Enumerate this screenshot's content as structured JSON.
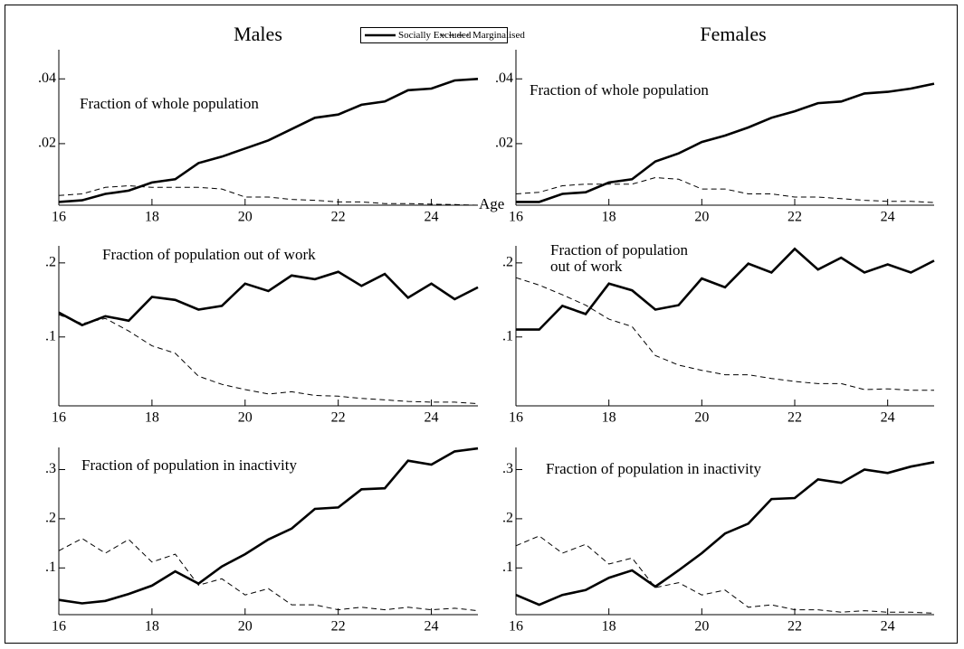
{
  "chart_data": [
    {
      "type": "line",
      "title": "Males",
      "annotation": [
        "Fraction of whole population"
      ],
      "xlabel": "Age",
      "x": [
        16,
        16.5,
        17,
        17.5,
        18,
        18.5,
        19,
        19.5,
        20,
        20.5,
        21,
        21.5,
        22,
        22.5,
        23,
        23.5,
        24,
        24.5,
        25
      ],
      "xlim": [
        16,
        25
      ],
      "xticks": [
        16,
        18,
        20,
        22,
        24
      ],
      "ylim": [
        0.001,
        0.049
      ],
      "yticks": [
        {
          "value": 0.02,
          "label": ".02"
        },
        {
          "value": 0.04,
          "label": ".04"
        }
      ],
      "series": [
        {
          "name": "Socially Excluded",
          "color": "#000000",
          "style": "solid",
          "values": [
            0.002,
            0.0025,
            0.0045,
            0.0055,
            0.008,
            0.009,
            0.014,
            0.016,
            0.0185,
            0.021,
            0.0245,
            0.028,
            0.029,
            0.032,
            0.033,
            0.0365,
            0.037,
            0.0395,
            0.04
          ]
        },
        {
          "name": "Marginalised",
          "color": "#000000",
          "style": "dashed",
          "values": [
            0.004,
            0.0045,
            0.0065,
            0.007,
            0.0065,
            0.0065,
            0.0065,
            0.006,
            0.0035,
            0.0035,
            0.0028,
            0.0025,
            0.002,
            0.002,
            0.0015,
            0.0015,
            0.0013,
            0.0012,
            0.001
          ]
        }
      ]
    },
    {
      "type": "line",
      "title": "Females",
      "annotation": [
        "Fraction of whole population"
      ],
      "x": [
        16,
        16.5,
        17,
        17.5,
        18,
        18.5,
        19,
        19.5,
        20,
        20.5,
        21,
        21.5,
        22,
        22.5,
        23,
        23.5,
        24,
        24.5,
        25
      ],
      "xlim": [
        16,
        25
      ],
      "xticks": [
        16,
        18,
        20,
        22,
        24
      ],
      "ylim": [
        0.001,
        0.049
      ],
      "yticks": [
        {
          "value": 0.02,
          "label": ".02"
        },
        {
          "value": 0.04,
          "label": ".04"
        }
      ],
      "series": [
        {
          "name": "Socially Excluded",
          "color": "#000000",
          "style": "solid",
          "values": [
            0.002,
            0.002,
            0.0045,
            0.005,
            0.008,
            0.009,
            0.0145,
            0.017,
            0.0205,
            0.0225,
            0.025,
            0.028,
            0.03,
            0.0325,
            0.033,
            0.0355,
            0.036,
            0.037,
            0.0385
          ]
        },
        {
          "name": "Marginalised",
          "color": "#000000",
          "style": "dashed",
          "values": [
            0.0045,
            0.005,
            0.007,
            0.0075,
            0.0075,
            0.0075,
            0.0095,
            0.009,
            0.006,
            0.006,
            0.0045,
            0.0045,
            0.0035,
            0.0035,
            0.003,
            0.0025,
            0.0022,
            0.0022,
            0.0018
          ]
        }
      ]
    },
    {
      "type": "line",
      "annotation": [
        "Fraction of population out of work"
      ],
      "x": [
        16,
        16.5,
        17,
        17.5,
        18,
        18.5,
        19,
        19.5,
        20,
        20.5,
        21,
        21.5,
        22,
        22.5,
        23,
        23.5,
        24,
        24.5,
        25
      ],
      "xlim": [
        16,
        25
      ],
      "xticks": [
        16,
        18,
        20,
        22,
        24
      ],
      "ylim": [
        0.007,
        0.223
      ],
      "yticks": [
        {
          "value": 0.1,
          "label": ".1"
        },
        {
          "value": 0.2,
          "label": ".2"
        }
      ],
      "series": [
        {
          "name": "Socially Excluded",
          "color": "#000000",
          "style": "solid",
          "values": [
            0.133,
            0.116,
            0.128,
            0.122,
            0.154,
            0.15,
            0.137,
            0.142,
            0.172,
            0.162,
            0.183,
            0.178,
            0.188,
            0.169,
            0.185,
            0.153,
            0.172,
            0.151,
            0.167
          ]
        },
        {
          "name": "Marginalised",
          "color": "#000000",
          "style": "dashed",
          "values": [
            0.13,
            0.118,
            0.125,
            0.108,
            0.088,
            0.078,
            0.047,
            0.036,
            0.029,
            0.023,
            0.026,
            0.021,
            0.02,
            0.017,
            0.015,
            0.013,
            0.012,
            0.012,
            0.01
          ]
        }
      ]
    },
    {
      "type": "line",
      "annotation": [
        "Fraction of population",
        "out of work"
      ],
      "x": [
        16,
        16.5,
        17,
        17.5,
        18,
        18.5,
        19,
        19.5,
        20,
        20.5,
        21,
        21.5,
        22,
        22.5,
        23,
        23.5,
        24,
        24.5,
        25
      ],
      "xlim": [
        16,
        25
      ],
      "xticks": [
        16,
        18,
        20,
        22,
        24
      ],
      "ylim": [
        0.007,
        0.223
      ],
      "yticks": [
        {
          "value": 0.1,
          "label": ".1"
        },
        {
          "value": 0.2,
          "label": ".2"
        }
      ],
      "series": [
        {
          "name": "Socially Excluded",
          "color": "#000000",
          "style": "solid",
          "values": [
            0.11,
            0.11,
            0.142,
            0.131,
            0.172,
            0.163,
            0.137,
            0.143,
            0.179,
            0.167,
            0.199,
            0.187,
            0.219,
            0.191,
            0.207,
            0.187,
            0.198,
            0.187,
            0.203
          ]
        },
        {
          "name": "Marginalised",
          "color": "#000000",
          "style": "dashed",
          "values": [
            0.18,
            0.17,
            0.157,
            0.143,
            0.124,
            0.114,
            0.075,
            0.062,
            0.055,
            0.049,
            0.049,
            0.044,
            0.04,
            0.037,
            0.037,
            0.029,
            0.03,
            0.028,
            0.028
          ]
        }
      ]
    },
    {
      "type": "line",
      "annotation": [
        "Fraction of population in inactivity"
      ],
      "x": [
        16,
        16.5,
        17,
        17.5,
        18,
        18.5,
        19,
        19.5,
        20,
        20.5,
        21,
        21.5,
        22,
        22.5,
        23,
        23.5,
        24,
        24.5,
        25
      ],
      "xlim": [
        16,
        25
      ],
      "xticks": [
        16,
        18,
        20,
        22,
        24
      ],
      "ylim": [
        0.005,
        0.345
      ],
      "yticks": [
        {
          "value": 0.1,
          "label": ".1"
        },
        {
          "value": 0.2,
          "label": ".2"
        },
        {
          "value": 0.3,
          "label": ".3"
        }
      ],
      "series": [
        {
          "name": "Socially Excluded",
          "color": "#000000",
          "style": "solid",
          "values": [
            0.035,
            0.028,
            0.033,
            0.047,
            0.064,
            0.093,
            0.068,
            0.103,
            0.128,
            0.158,
            0.18,
            0.22,
            0.223,
            0.26,
            0.262,
            0.318,
            0.31,
            0.337,
            0.343
          ]
        },
        {
          "name": "Marginalised",
          "color": "#000000",
          "style": "dashed",
          "values": [
            0.135,
            0.16,
            0.13,
            0.158,
            0.112,
            0.128,
            0.065,
            0.078,
            0.045,
            0.058,
            0.025,
            0.025,
            0.015,
            0.02,
            0.015,
            0.02,
            0.015,
            0.018,
            0.013
          ]
        }
      ]
    },
    {
      "type": "line",
      "annotation": [
        "Fraction of population in inactivity"
      ],
      "x": [
        16,
        16.5,
        17,
        17.5,
        18,
        18.5,
        19,
        19.5,
        20,
        20.5,
        21,
        21.5,
        22,
        22.5,
        23,
        23.5,
        24,
        24.5,
        25
      ],
      "xlim": [
        16,
        25
      ],
      "xticks": [
        16,
        18,
        20,
        22,
        24
      ],
      "ylim": [
        0.005,
        0.345
      ],
      "yticks": [
        {
          "value": 0.1,
          "label": ".1"
        },
        {
          "value": 0.2,
          "label": ".2"
        },
        {
          "value": 0.3,
          "label": ".3"
        }
      ],
      "series": [
        {
          "name": "Socially Excluded",
          "color": "#000000",
          "style": "solid",
          "values": [
            0.045,
            0.025,
            0.045,
            0.055,
            0.08,
            0.095,
            0.062,
            0.095,
            0.13,
            0.17,
            0.19,
            0.24,
            0.242,
            0.28,
            0.273,
            0.3,
            0.293,
            0.306,
            0.315
          ]
        },
        {
          "name": "Marginalised",
          "color": "#000000",
          "style": "dashed",
          "values": [
            0.145,
            0.165,
            0.13,
            0.148,
            0.108,
            0.12,
            0.06,
            0.07,
            0.045,
            0.055,
            0.02,
            0.025,
            0.015,
            0.015,
            0.01,
            0.013,
            0.01,
            0.01,
            0.008
          ]
        }
      ]
    }
  ]
}
